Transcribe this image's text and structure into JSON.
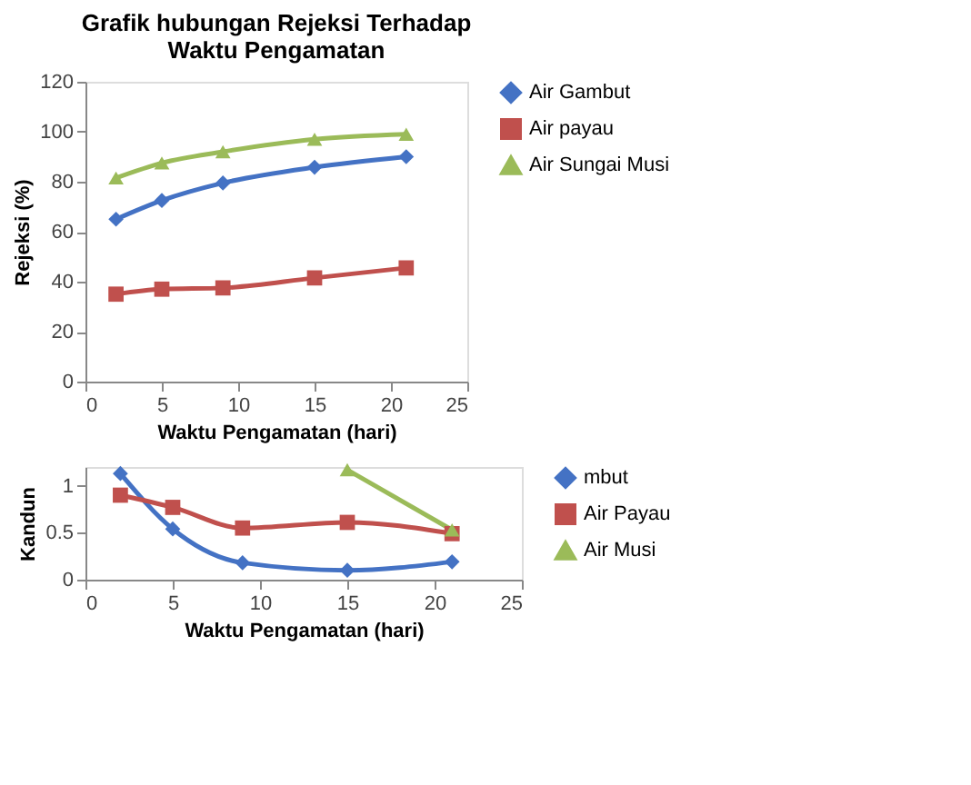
{
  "chart_data": [
    {
      "type": "line",
      "title": "Grafik hubungan  Rejeksi Terhadap\nWaktu Pengamatan",
      "xlabel": "Waktu  Pengamatan (hari)",
      "ylabel": "Rejeksi (%)",
      "x": [
        2,
        5,
        9,
        15,
        21
      ],
      "xlim": [
        0,
        25
      ],
      "xticks": [
        0,
        5,
        10,
        15,
        20,
        25
      ],
      "ylim": [
        0,
        120
      ],
      "yticks": [
        0,
        20,
        40,
        60,
        80,
        100,
        120
      ],
      "grid": false,
      "legend": "right",
      "series": [
        {
          "name": "Air Gambut",
          "color": "#4472c4",
          "marker": "diamond",
          "values": [
            65,
            72.5,
            79.5,
            85.8,
            90
          ]
        },
        {
          "name": "Air payau",
          "color": "#c0504d",
          "marker": "square",
          "values": [
            35,
            37,
            37.5,
            41.5,
            45.5
          ]
        },
        {
          "name": "Air Sungai Musi",
          "color": "#9bbb59",
          "marker": "triangle",
          "values": [
            81.5,
            87.5,
            92,
            97,
            99
          ]
        }
      ]
    },
    {
      "type": "line",
      "xlabel": "Waktu Pengamatan (hari)",
      "ylabel": "Kandun",
      "x": [
        2,
        5,
        9,
        15,
        21
      ],
      "xlim": [
        0,
        25
      ],
      "xticks": [
        0,
        5,
        10,
        15,
        20,
        25
      ],
      "ylim": [
        0,
        1.2
      ],
      "yticks": [
        0,
        0.5,
        1
      ],
      "grid": false,
      "legend": "right",
      "series": [
        {
          "name": "mbut",
          "color": "#4472c4",
          "marker": "diamond",
          "values": [
            1.13,
            0.54,
            0.18,
            0.1,
            0.19
          ]
        },
        {
          "name": "Air Payau",
          "color": "#c0504d",
          "marker": "square",
          "values": [
            0.9,
            0.77,
            0.55,
            0.61,
            0.49
          ]
        },
        {
          "name": "Air Musi",
          "color": "#9bbb59",
          "marker": "triangle",
          "values": [
            null,
            null,
            null,
            1.17,
            0.53
          ]
        }
      ]
    }
  ]
}
